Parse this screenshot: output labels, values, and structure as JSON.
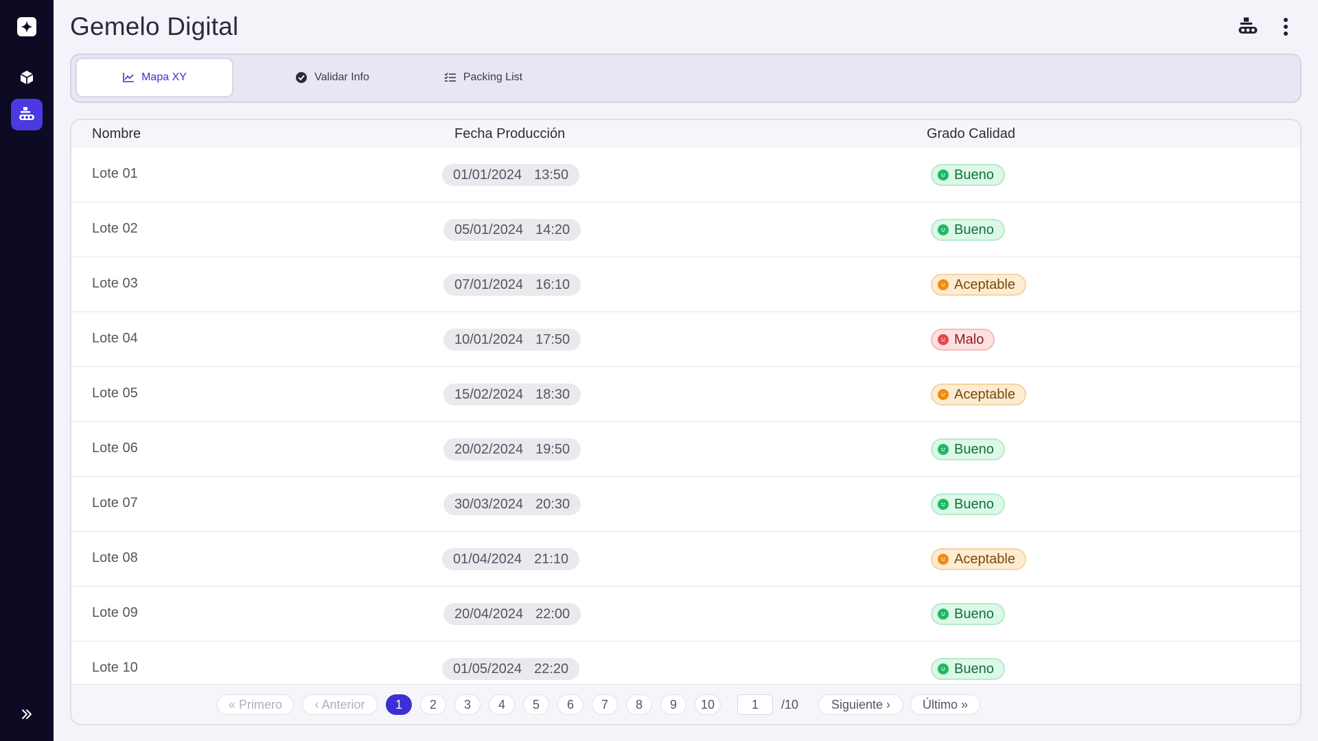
{
  "header": {
    "title": "Gemelo Digital"
  },
  "tabs": [
    {
      "label": "Mapa XY",
      "icon": "chart-icon",
      "active": true
    },
    {
      "label": "Validar Info",
      "icon": "check-circle-icon",
      "active": false
    },
    {
      "label": "Packing List",
      "icon": "checklist-icon",
      "active": false
    }
  ],
  "table": {
    "columns": [
      "Nombre",
      "Fecha Producción",
      "Grado Calidad"
    ],
    "rows": [
      {
        "name": "Lote 01",
        "date": "01/01/2024",
        "time": "13:50",
        "grade": "Bueno"
      },
      {
        "name": "Lote 02",
        "date": "05/01/2024",
        "time": "14:20",
        "grade": "Bueno"
      },
      {
        "name": "Lote 03",
        "date": "07/01/2024",
        "time": "16:10",
        "grade": "Aceptable"
      },
      {
        "name": "Lote 04",
        "date": "10/01/2024",
        "time": "17:50",
        "grade": "Malo"
      },
      {
        "name": "Lote 05",
        "date": "15/02/2024",
        "time": "18:30",
        "grade": "Aceptable"
      },
      {
        "name": "Lote 06",
        "date": "20/02/2024",
        "time": "19:50",
        "grade": "Bueno"
      },
      {
        "name": "Lote 07",
        "date": "30/03/2024",
        "time": "20:30",
        "grade": "Bueno"
      },
      {
        "name": "Lote 08",
        "date": "01/04/2024",
        "time": "21:10",
        "grade": "Aceptable"
      },
      {
        "name": "Lote 09",
        "date": "20/04/2024",
        "time": "22:00",
        "grade": "Bueno"
      },
      {
        "name": "Lote 10",
        "date": "01/05/2024",
        "time": "22:20",
        "grade": "Bueno"
      }
    ]
  },
  "pagination": {
    "first": "« Primero",
    "prev": "‹ Anterior",
    "pages": [
      "1",
      "2",
      "3",
      "4",
      "5",
      "6",
      "7",
      "8",
      "9",
      "10"
    ],
    "current_page": "1",
    "page_input": "1",
    "total": "/10",
    "next": "Siguiente ›",
    "last": "Último »"
  },
  "colors": {
    "accent": "#3d2fd6",
    "sidebar": "#0d0a24",
    "good": "#1db863",
    "ok": "#ef8c0f",
    "bad": "#e5484d"
  }
}
